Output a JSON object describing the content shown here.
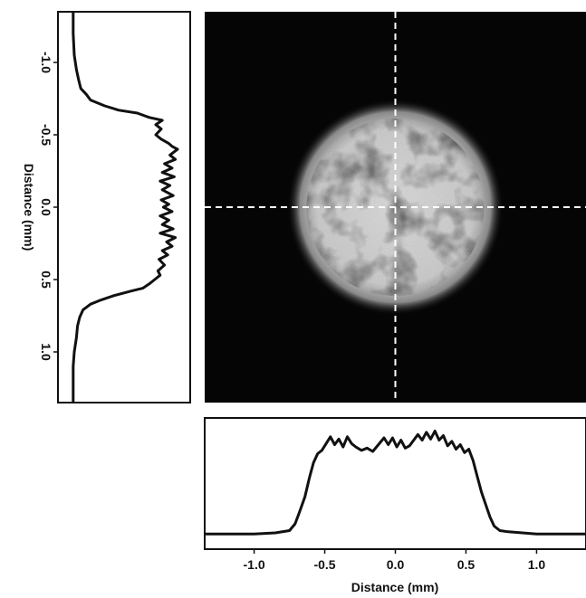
{
  "chart_data": [
    {
      "type": "heatmap",
      "description_role": "beam intensity image",
      "x_range": [
        -1.35,
        1.35
      ],
      "y_range": [
        -1.35,
        1.35
      ],
      "spot_center": [
        0.0,
        0.0
      ],
      "spot_radius": 0.65,
      "crosshair": {
        "x": 0.0,
        "y": 0.0,
        "style": "dashed",
        "color": "#ffffff"
      },
      "colors": {
        "background": "#050505",
        "spot": "#d8d8d8"
      }
    },
    {
      "type": "line",
      "orientation": "vertical",
      "ylabel": "Distance (mm)",
      "y_ticks": [
        "-1.0",
        "-0.5",
        "0.0",
        "0.5",
        "1.0"
      ],
      "y_tick_values": [
        -1.0,
        -0.5,
        0.0,
        0.5,
        1.0
      ],
      "ylim": [
        -1.35,
        1.35
      ],
      "intensity_range": [
        0,
        1
      ],
      "series": [
        {
          "points": [
            [
              -1.35,
              0.04
            ],
            [
              -1.2,
              0.04
            ],
            [
              -1.05,
              0.05
            ],
            [
              -0.95,
              0.07
            ],
            [
              -0.88,
              0.09
            ],
            [
              -0.82,
              0.11
            ],
            [
              -0.78,
              0.16
            ],
            [
              -0.74,
              0.2
            ],
            [
              -0.7,
              0.33
            ],
            [
              -0.67,
              0.46
            ],
            [
              -0.65,
              0.63
            ],
            [
              -0.62,
              0.74
            ],
            [
              -0.6,
              0.86
            ],
            [
              -0.57,
              0.8
            ],
            [
              -0.54,
              0.85
            ],
            [
              -0.5,
              0.8
            ],
            [
              -0.47,
              0.85
            ],
            [
              -0.44,
              0.92
            ],
            [
              -0.42,
              0.95
            ],
            [
              -0.4,
              1.0
            ],
            [
              -0.36,
              0.93
            ],
            [
              -0.33,
              0.98
            ],
            [
              -0.3,
              0.88
            ],
            [
              -0.27,
              0.95
            ],
            [
              -0.24,
              0.86
            ],
            [
              -0.21,
              0.97
            ],
            [
              -0.18,
              0.84
            ],
            [
              -0.15,
              0.93
            ],
            [
              -0.12,
              0.86
            ],
            [
              -0.08,
              0.96
            ],
            [
              -0.05,
              0.85
            ],
            [
              -0.02,
              0.92
            ],
            [
              0.0,
              0.87
            ],
            [
              0.03,
              0.95
            ],
            [
              0.06,
              0.84
            ],
            [
              0.09,
              0.92
            ],
            [
              0.12,
              0.86
            ],
            [
              0.15,
              0.96
            ],
            [
              0.18,
              0.84
            ],
            [
              0.21,
              0.98
            ],
            [
              0.24,
              0.9
            ],
            [
              0.27,
              0.95
            ],
            [
              0.3,
              0.86
            ],
            [
              0.33,
              0.91
            ],
            [
              0.36,
              0.83
            ],
            [
              0.4,
              0.88
            ],
            [
              0.44,
              0.82
            ],
            [
              0.47,
              0.84
            ],
            [
              0.5,
              0.79
            ],
            [
              0.53,
              0.74
            ],
            [
              0.56,
              0.68
            ],
            [
              0.58,
              0.57
            ],
            [
              0.61,
              0.42
            ],
            [
              0.64,
              0.3
            ],
            [
              0.67,
              0.2
            ],
            [
              0.71,
              0.13
            ],
            [
              0.76,
              0.1
            ],
            [
              0.82,
              0.08
            ],
            [
              0.9,
              0.07
            ],
            [
              1.0,
              0.05
            ],
            [
              1.1,
              0.04
            ],
            [
              1.2,
              0.04
            ],
            [
              1.35,
              0.04
            ]
          ]
        }
      ]
    },
    {
      "type": "line",
      "orientation": "horizontal",
      "xlabel": "Distance (mm)",
      "x_ticks": [
        "-1.0",
        "-0.5",
        "0.0",
        "0.5",
        "1.0"
      ],
      "x_tick_values": [
        -1.0,
        -0.5,
        0.0,
        0.5,
        1.0
      ],
      "xlim": [
        -1.35,
        1.35
      ],
      "intensity_range": [
        0,
        1
      ],
      "series": [
        {
          "points": [
            [
              -1.35,
              0.07
            ],
            [
              -1.2,
              0.07
            ],
            [
              -1.0,
              0.07
            ],
            [
              -0.85,
              0.08
            ],
            [
              -0.75,
              0.1
            ],
            [
              -0.71,
              0.16
            ],
            [
              -0.68,
              0.26
            ],
            [
              -0.64,
              0.4
            ],
            [
              -0.61,
              0.56
            ],
            [
              -0.58,
              0.7
            ],
            [
              -0.55,
              0.78
            ],
            [
              -0.52,
              0.81
            ],
            [
              -0.49,
              0.87
            ],
            [
              -0.46,
              0.93
            ],
            [
              -0.43,
              0.86
            ],
            [
              -0.4,
              0.91
            ],
            [
              -0.37,
              0.84
            ],
            [
              -0.34,
              0.93
            ],
            [
              -0.31,
              0.87
            ],
            [
              -0.28,
              0.84
            ],
            [
              -0.24,
              0.81
            ],
            [
              -0.2,
              0.83
            ],
            [
              -0.16,
              0.8
            ],
            [
              -0.12,
              0.86
            ],
            [
              -0.08,
              0.92
            ],
            [
              -0.05,
              0.86
            ],
            [
              -0.02,
              0.92
            ],
            [
              0.01,
              0.84
            ],
            [
              0.04,
              0.9
            ],
            [
              0.07,
              0.83
            ],
            [
              0.1,
              0.85
            ],
            [
              0.13,
              0.9
            ],
            [
              0.16,
              0.95
            ],
            [
              0.19,
              0.9
            ],
            [
              0.22,
              0.97
            ],
            [
              0.25,
              0.91
            ],
            [
              0.28,
              0.98
            ],
            [
              0.31,
              0.9
            ],
            [
              0.34,
              0.94
            ],
            [
              0.37,
              0.85
            ],
            [
              0.4,
              0.89
            ],
            [
              0.43,
              0.82
            ],
            [
              0.46,
              0.86
            ],
            [
              0.49,
              0.79
            ],
            [
              0.52,
              0.82
            ],
            [
              0.55,
              0.72
            ],
            [
              0.58,
              0.58
            ],
            [
              0.61,
              0.44
            ],
            [
              0.64,
              0.33
            ],
            [
              0.67,
              0.22
            ],
            [
              0.7,
              0.14
            ],
            [
              0.74,
              0.1
            ],
            [
              0.8,
              0.09
            ],
            [
              0.9,
              0.08
            ],
            [
              1.0,
              0.07
            ],
            [
              1.15,
              0.07
            ],
            [
              1.35,
              0.07
            ]
          ]
        }
      ]
    }
  ]
}
